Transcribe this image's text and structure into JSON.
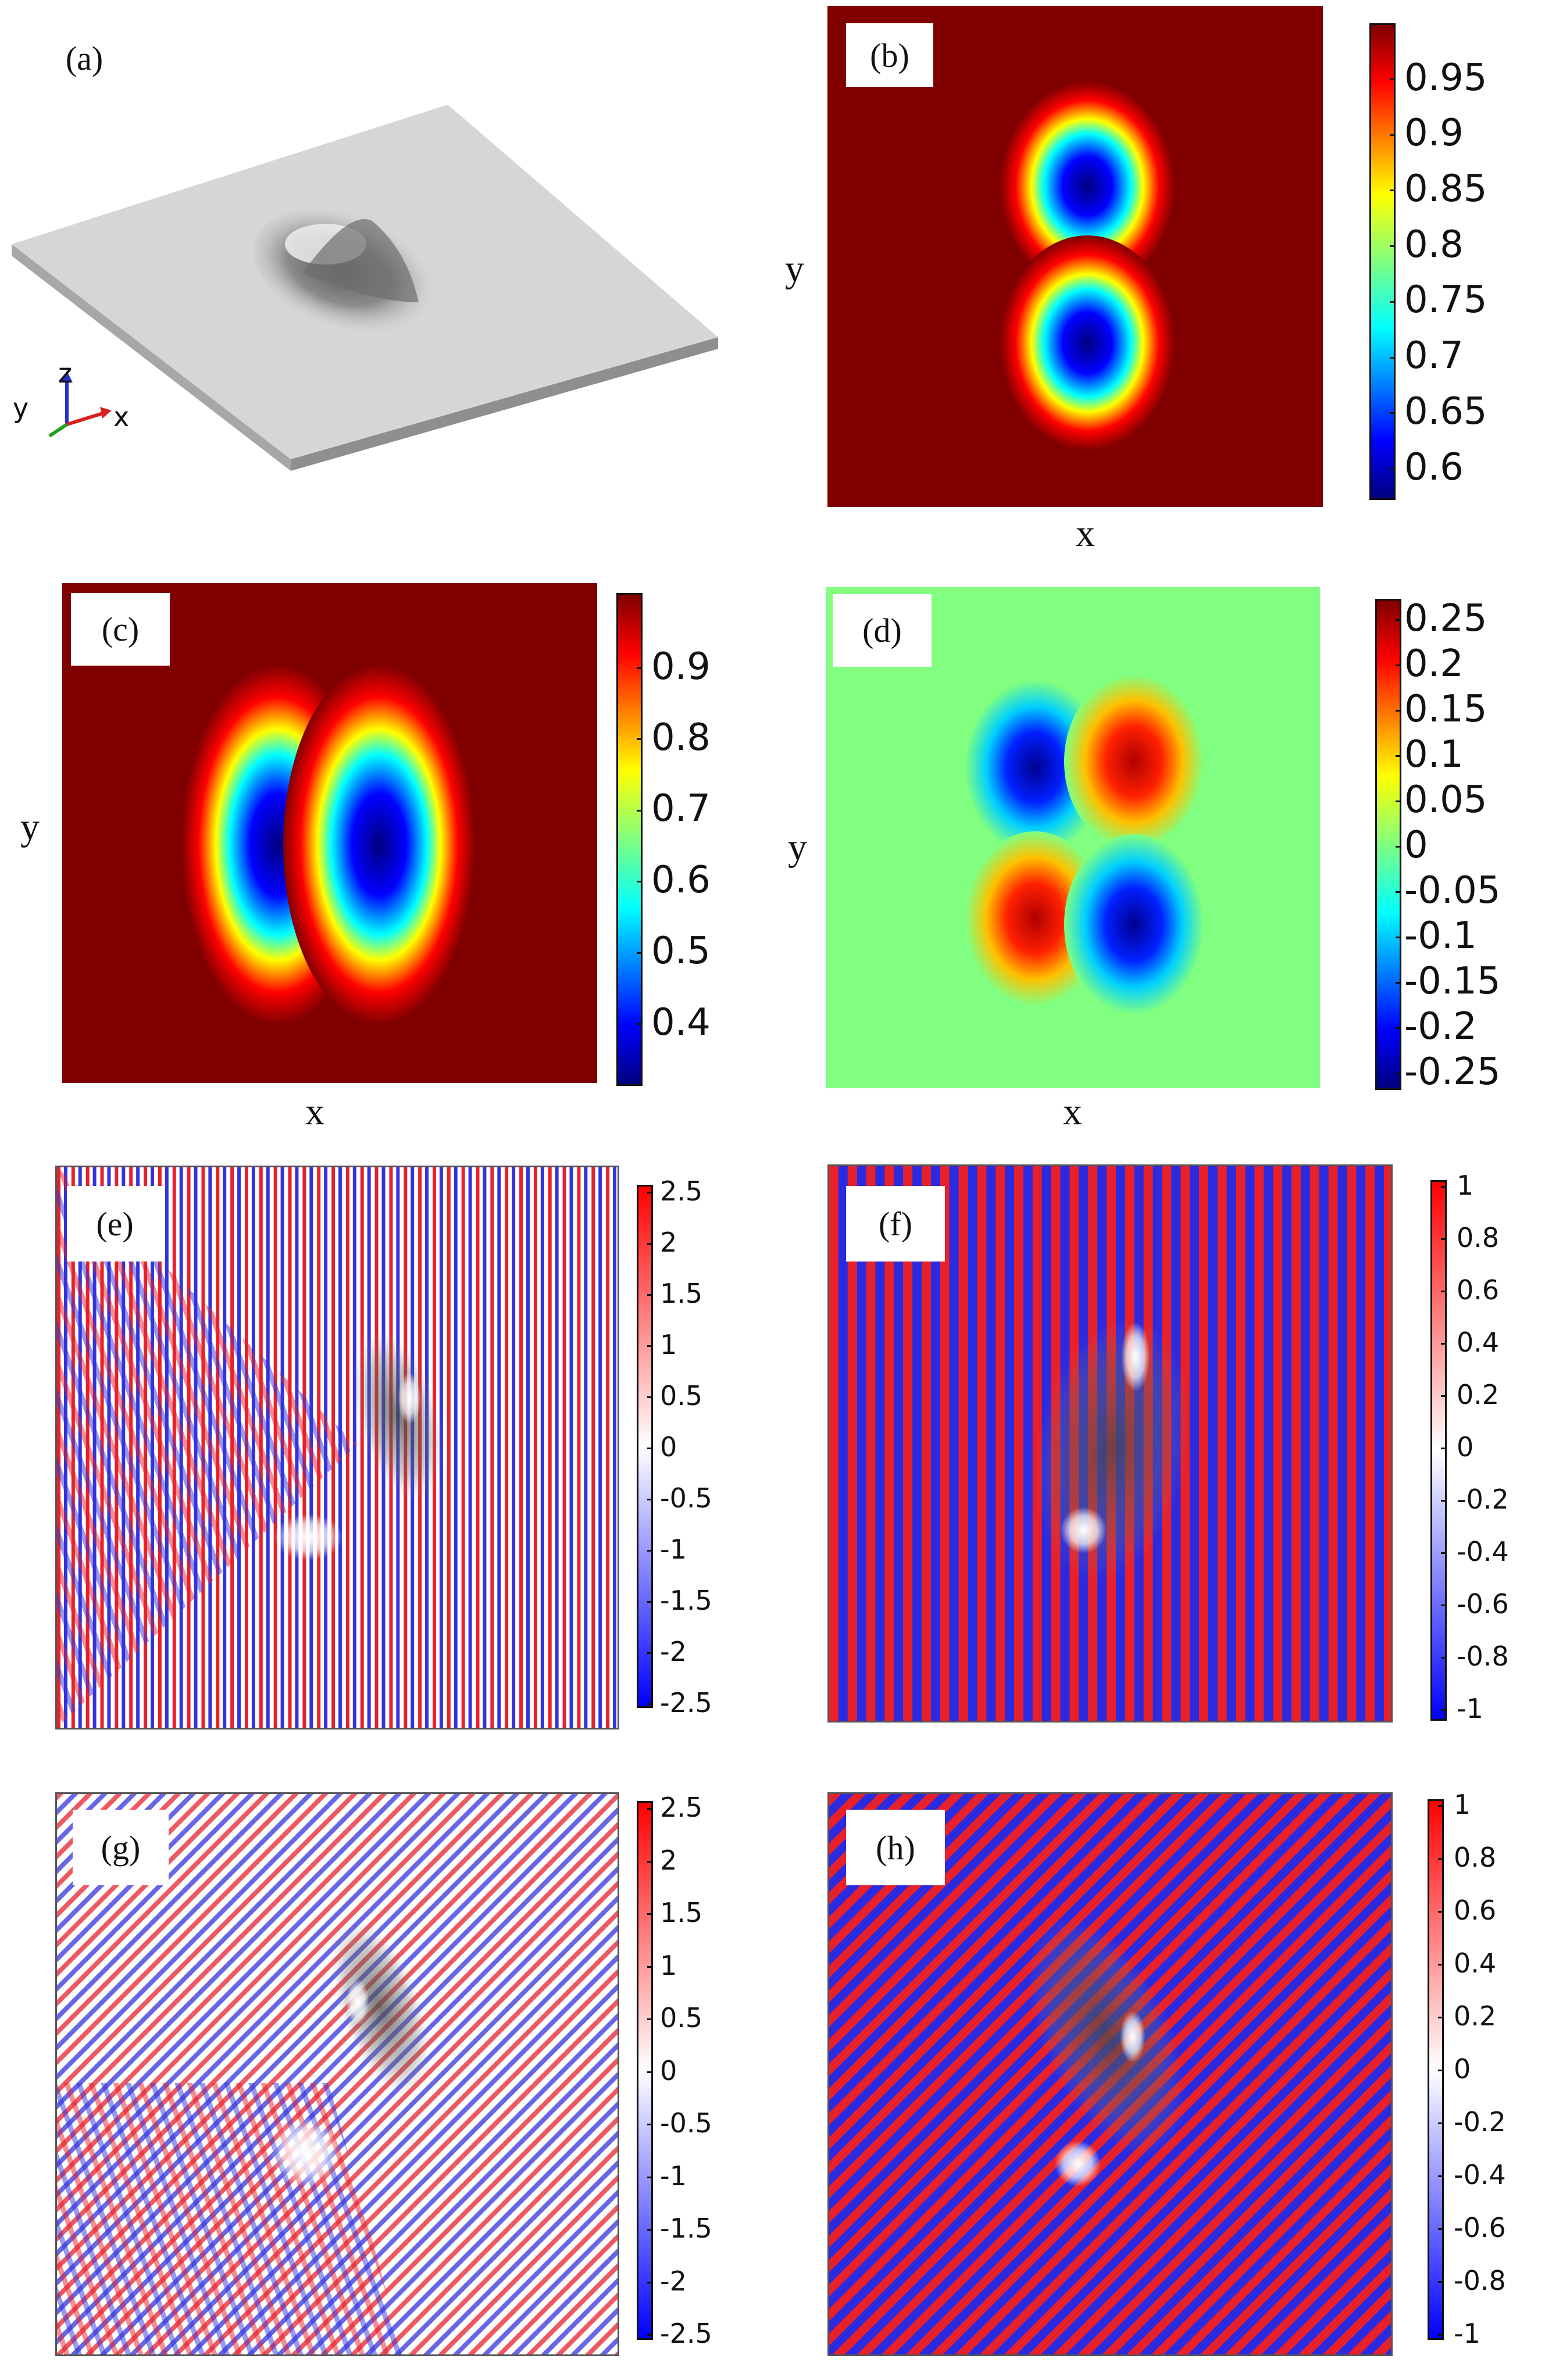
{
  "panels": [
    {
      "label": "(a)",
      "type": "3d-plate"
    },
    {
      "label": "(b)",
      "xlabel": "x",
      "ylabel": "y",
      "colorbar_ticks": [
        "0.95",
        "0.9",
        "0.85",
        "0.8",
        "0.75",
        "0.7",
        "0.65",
        "0.6"
      ],
      "cmap": "jet"
    },
    {
      "label": "(c)",
      "xlabel": "x",
      "ylabel": "y",
      "colorbar_ticks": [
        "0.9",
        "0.8",
        "0.7",
        "0.6",
        "0.5",
        "0.4"
      ],
      "cmap": "jet"
    },
    {
      "label": "(d)",
      "xlabel": "x",
      "ylabel": "y",
      "colorbar_ticks": [
        "0.25",
        "0.2",
        "0.15",
        "0.1",
        "0.05",
        "0",
        "-0.05",
        "-0.1",
        "-0.15",
        "-0.2",
        "-0.25"
      ],
      "cmap": "jet"
    },
    {
      "label": "(e)",
      "colorbar_ticks": [
        "2.5",
        "2",
        "1.5",
        "1",
        "0.5",
        "0",
        "-0.5",
        "-1",
        "-1.5",
        "-2",
        "-2.5"
      ],
      "cmap": "bwr"
    },
    {
      "label": "(f)",
      "colorbar_ticks": [
        "1",
        "0.8",
        "0.6",
        "0.4",
        "0.2",
        "0",
        "-0.2",
        "-0.4",
        "-0.6",
        "-0.8",
        "-1"
      ],
      "cmap": "bwr"
    },
    {
      "label": "(g)",
      "colorbar_ticks": [
        "2.5",
        "2",
        "1.5",
        "1",
        "0.5",
        "0",
        "-0.5",
        "-1",
        "-1.5",
        "-2",
        "-2.5"
      ],
      "cmap": "bwr"
    },
    {
      "label": "(h)",
      "colorbar_ticks": [
        "1",
        "0.8",
        "0.6",
        "0.4",
        "0.2",
        "0",
        "-0.2",
        "-0.4",
        "-0.6",
        "-0.8",
        "-1"
      ],
      "cmap": "bwr"
    }
  ],
  "axes_triad": {
    "z": "z",
    "y": "y",
    "x": "x"
  },
  "colors": {
    "dark_red": "#800000",
    "bg_green": "#80ff80",
    "red": "#e8202a",
    "blue": "#2a2ae0"
  }
}
